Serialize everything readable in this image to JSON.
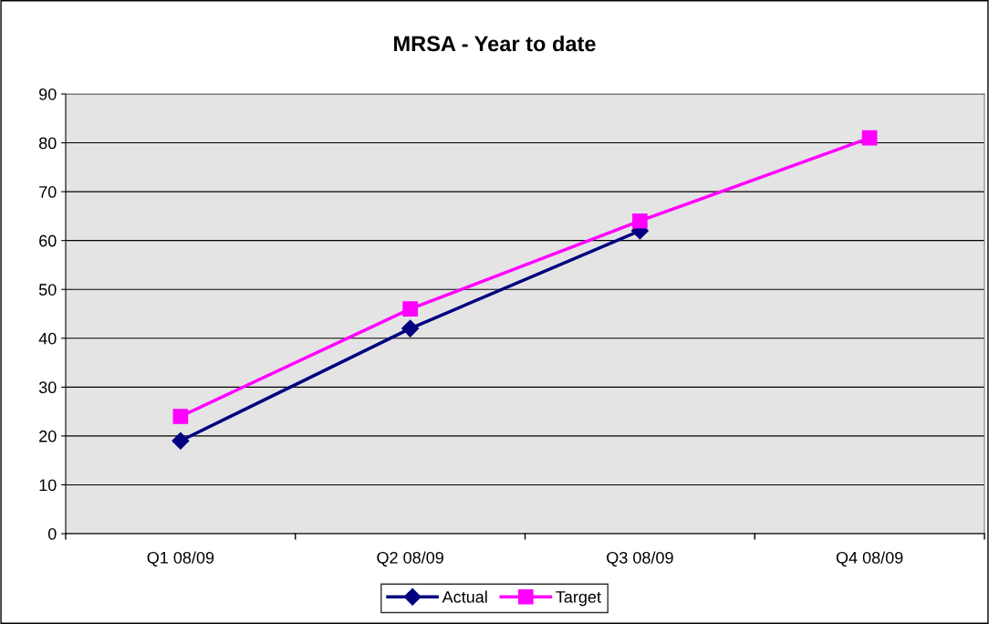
{
  "chart_data": {
    "type": "line",
    "title": "MRSA - Year to date",
    "categories": [
      "Q1 08/09",
      "Q2 08/09",
      "Q3 08/09",
      "Q4 08/09"
    ],
    "series": [
      {
        "name": "Actual",
        "color": "#000080",
        "marker": "diamond",
        "values": [
          19,
          42,
          62,
          null
        ]
      },
      {
        "name": "Target",
        "color": "#ff00ff",
        "marker": "square",
        "values": [
          24,
          46,
          64,
          81
        ]
      }
    ],
    "ylim": [
      0,
      90
    ],
    "yticks": [
      0,
      10,
      20,
      30,
      40,
      50,
      60,
      70,
      80,
      90
    ],
    "grid": "y",
    "legend": "bottom",
    "line_style": "solid"
  }
}
